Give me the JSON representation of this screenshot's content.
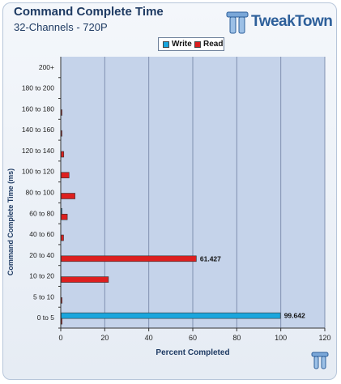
{
  "header": {
    "title": "Command Complete Time",
    "subtitle": "32-Channels - 720P",
    "logo_text": "TweakTown",
    "logo_icon": "tt-logo-icon"
  },
  "colors": {
    "write": "#1aa6dd",
    "read": "#dd1f1f",
    "plot_bg": "#c5d3ea",
    "grid": "#8090b0"
  },
  "chart_data": {
    "type": "bar",
    "orientation": "horizontal",
    "title": "Command Complete Time",
    "subtitle": "32-Channels - 720P",
    "xlabel": "Percent Completed",
    "ylabel": "Command Complete Time (ms)",
    "xlim": [
      0,
      120
    ],
    "xticks": [
      0,
      20,
      40,
      60,
      80,
      100,
      120
    ],
    "grid": true,
    "legend_position": "top-center",
    "categories": [
      "0 to 5",
      "5 to 10",
      "10 to 20",
      "20 to 40",
      "40 to 60",
      "60 to 80",
      "80 to 100",
      "100 to 120",
      "120 to 140",
      "140 to 160",
      "160 to 180",
      "180 to 200",
      "200+"
    ],
    "series": [
      {
        "name": "Write",
        "values": [
          99.642,
          0,
          0,
          0,
          0,
          0.2,
          0,
          0,
          0,
          0,
          0,
          0,
          0
        ]
      },
      {
        "name": "Read",
        "values": [
          0.4,
          0.4,
          21.5,
          61.427,
          1.1,
          2.8,
          6.3,
          3.6,
          1.2,
          0.3,
          0.3,
          0,
          0
        ]
      }
    ],
    "data_labels": [
      {
        "series": "Write",
        "category": "0 to 5",
        "text": "99.642"
      },
      {
        "series": "Read",
        "category": "20 to 40",
        "text": "61.427"
      }
    ]
  }
}
